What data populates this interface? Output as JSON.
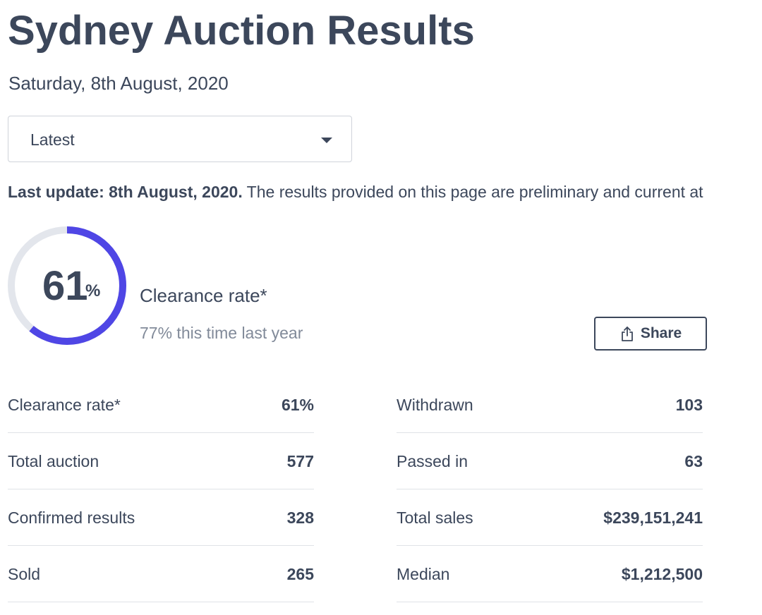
{
  "header": {
    "title": "Sydney Auction Results",
    "date": "Saturday, 8th August, 2020"
  },
  "period_select": {
    "selected": "Latest"
  },
  "update_notice": {
    "bold_text": "Last update: 8th August, 2020.",
    "text": " The results provided on this page are preliminary and current at"
  },
  "clearance_gauge": {
    "value": 61,
    "display_number": "61",
    "display_unit": "%",
    "label": "Clearance rate*",
    "comparison": "77% this time last year",
    "colors": {
      "progress": "#4f46e5",
      "track": "#e3e6ec"
    }
  },
  "share": {
    "label": "Share",
    "icon": "share-icon"
  },
  "stats": {
    "left": [
      {
        "label": "Clearance rate*",
        "value": "61%"
      },
      {
        "label": "Total auction",
        "value": "577"
      },
      {
        "label": "Confirmed results",
        "value": "328"
      },
      {
        "label": "Sold",
        "value": "265"
      }
    ],
    "right": [
      {
        "label": "Withdrawn",
        "value": "103"
      },
      {
        "label": "Passed in",
        "value": "63"
      },
      {
        "label": "Total sales",
        "value": "$239,151,241"
      },
      {
        "label": "Median",
        "value": "$1,212,500"
      }
    ]
  },
  "colors": {
    "text": "#3c475b",
    "muted_text": "#818a99",
    "divider": "#dfe2e7"
  }
}
